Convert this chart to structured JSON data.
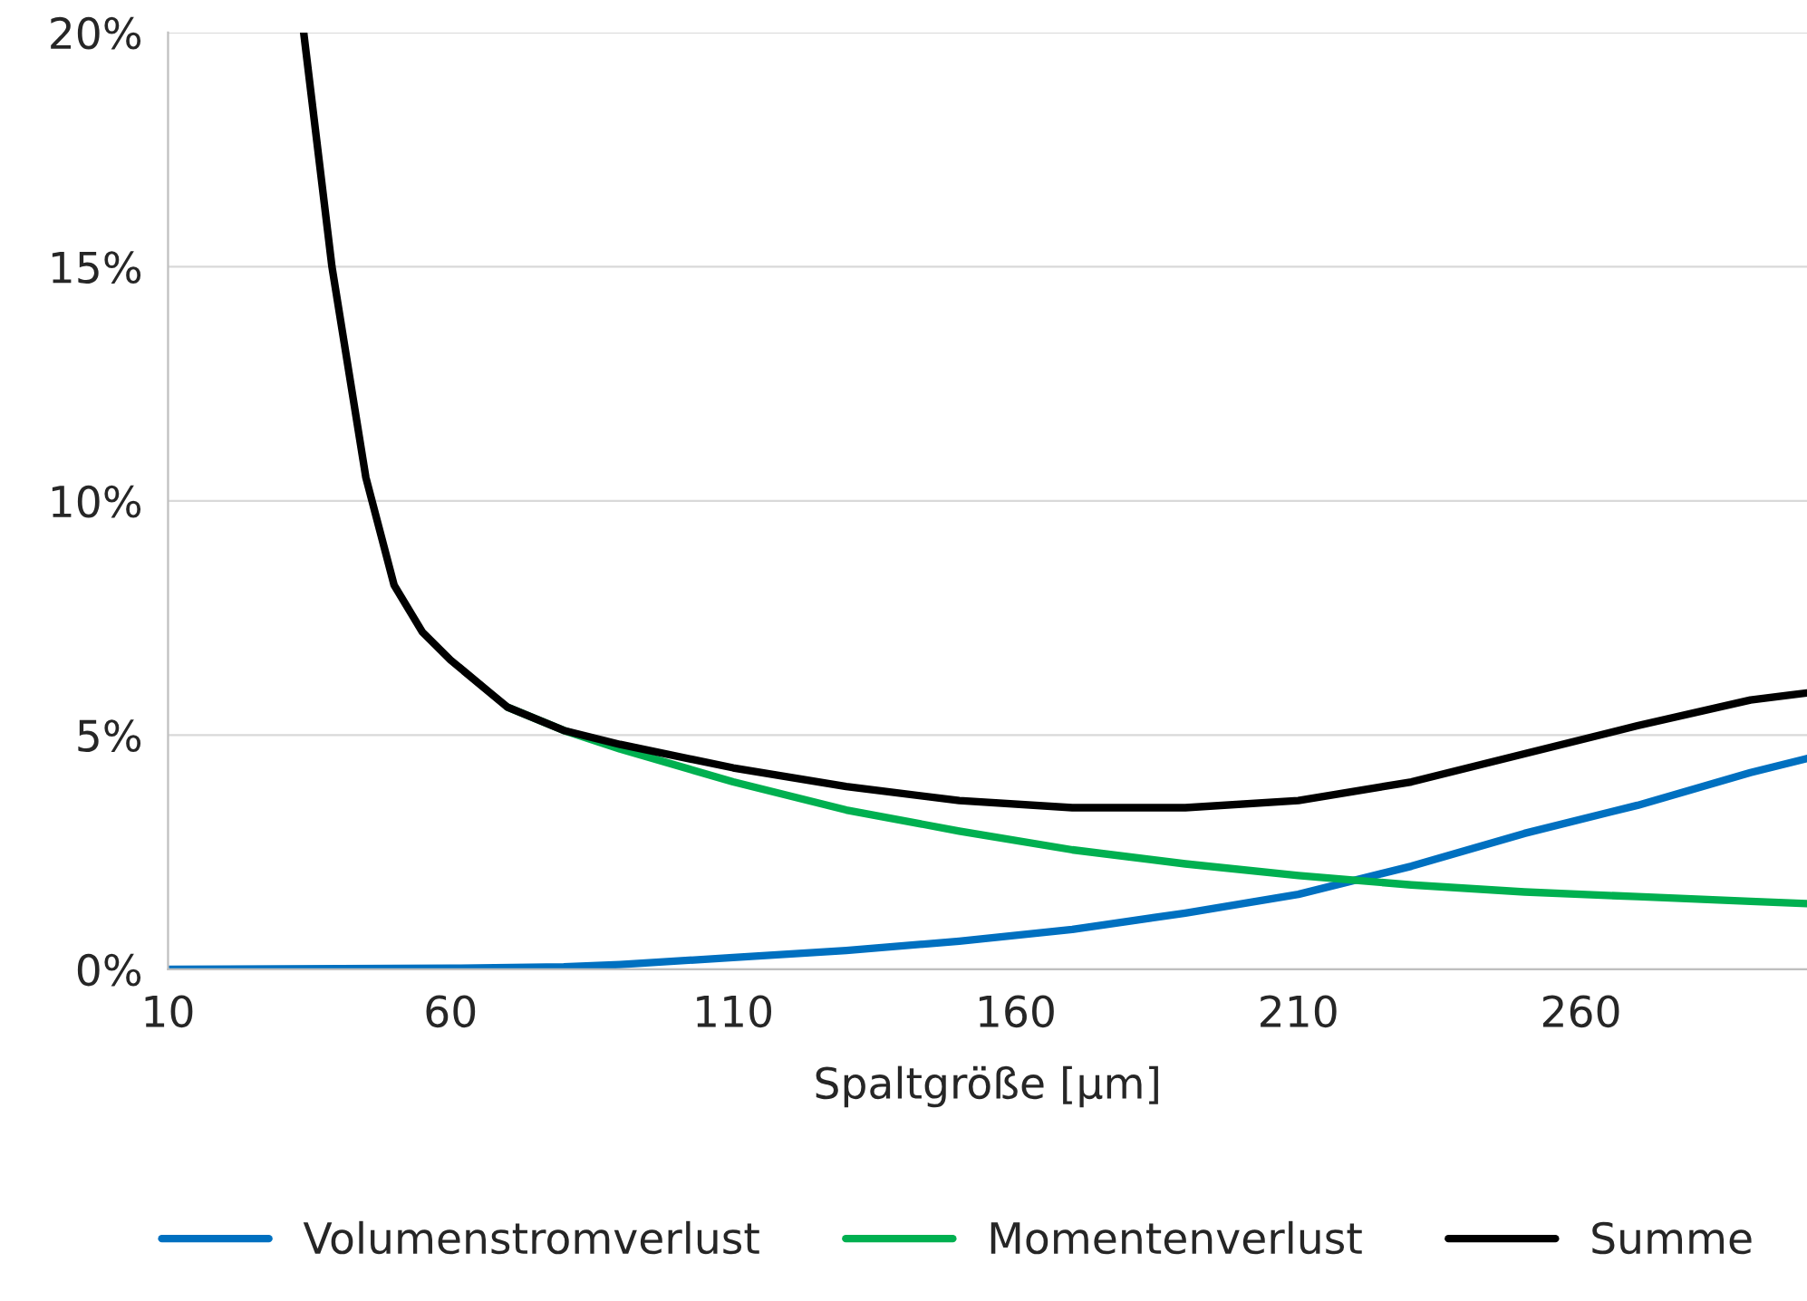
{
  "chart_data": {
    "type": "line",
    "xlabel": "Spaltgröße [µm]",
    "xlim": [
      10,
      300
    ],
    "xticks": [
      10,
      60,
      110,
      160,
      210,
      260
    ],
    "ylim": [
      0,
      20
    ],
    "yticks": [
      {
        "value": 0,
        "label": "0%"
      },
      {
        "value": 5,
        "label": "5%"
      },
      {
        "value": 10,
        "label": "10%"
      },
      {
        "value": 15,
        "label": "15%"
      },
      {
        "value": 20,
        "label": "20%"
      }
    ],
    "grid": "y",
    "legend": "bottom",
    "marker": "none",
    "line_style": "solid",
    "series": [
      {
        "name": "Volumenstromverlust",
        "color": "#0070c0",
        "x": [
          10,
          60,
          80,
          90,
          110,
          130,
          150,
          170,
          190,
          210,
          230,
          250,
          270,
          290,
          300
        ],
        "values": [
          0,
          0.02,
          0.05,
          0.1,
          0.25,
          0.4,
          0.6,
          0.85,
          1.2,
          1.6,
          2.2,
          2.9,
          3.5,
          4.2,
          4.5
        ]
      },
      {
        "name": "Momentenverlust",
        "color": "#00b050",
        "x": [
          70,
          80,
          90,
          110,
          130,
          150,
          170,
          190,
          210,
          230,
          250,
          270,
          290,
          300
        ],
        "values": [
          5.6,
          5.1,
          4.7,
          4.0,
          3.4,
          2.95,
          2.55,
          2.25,
          2.0,
          1.8,
          1.65,
          1.55,
          1.45,
          1.4
        ]
      },
      {
        "name": "Summe",
        "color": "#000000",
        "x": [
          34,
          39,
          45,
          50,
          55,
          60,
          70,
          80,
          90,
          110,
          130,
          150,
          170,
          190,
          210,
          230,
          250,
          270,
          290,
          300
        ],
        "values": [
          20,
          15,
          10.5,
          8.2,
          7.2,
          6.6,
          5.6,
          5.1,
          4.8,
          4.3,
          3.9,
          3.6,
          3.45,
          3.45,
          3.6,
          4.0,
          4.6,
          5.2,
          5.75,
          5.9
        ]
      }
    ]
  }
}
